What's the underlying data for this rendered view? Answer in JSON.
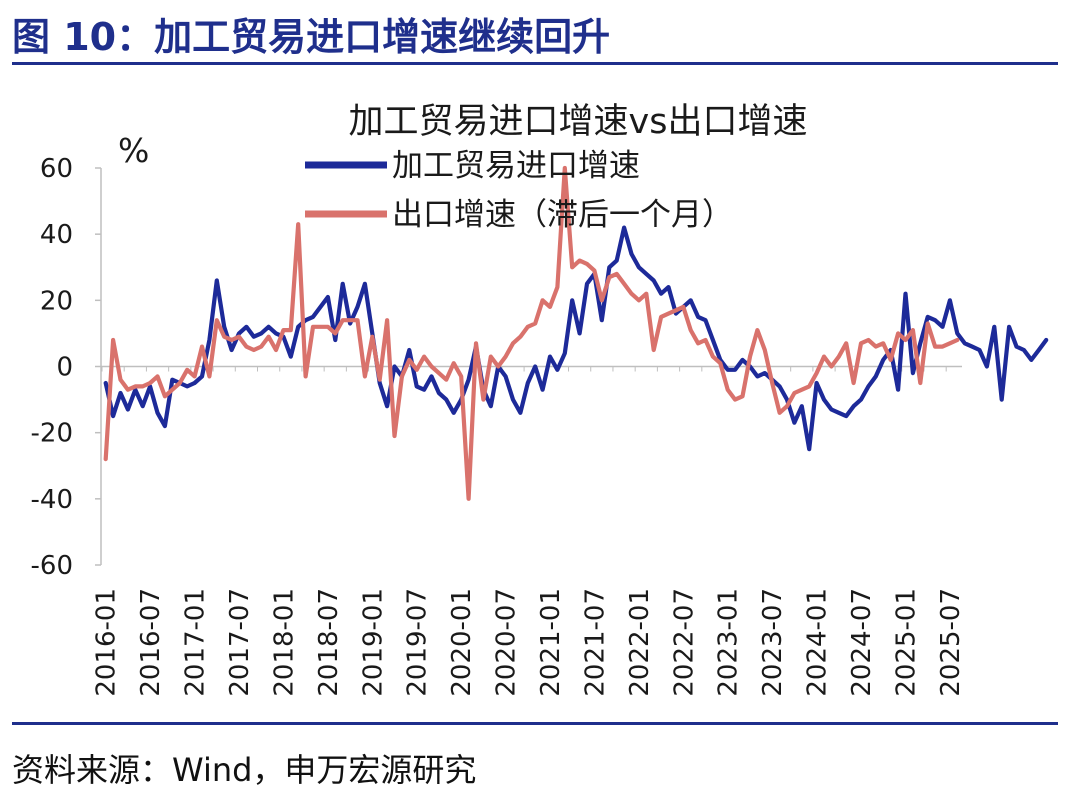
{
  "figure": {
    "title": "图 10：加工贸易进口增速继续回升",
    "source": "资料来源：Wind，申万宏源研究"
  },
  "colors": {
    "brand": "#1f2f8c",
    "series_import": "#1d2a99",
    "series_export": "#d9726c"
  },
  "chart_data": {
    "type": "line",
    "title": "加工贸易进口增速vs出口增速",
    "ylabel": "%",
    "xlabel": "",
    "ylim": [
      -60,
      60
    ],
    "yticks": [
      "60",
      "40",
      "20",
      "0",
      "-20",
      "-40",
      "-60"
    ],
    "xticks": [
      "2016-01",
      "2016-07",
      "2017-01",
      "2017-07",
      "2018-01",
      "2018-07",
      "2019-01",
      "2019-07",
      "2020-01",
      "2020-07",
      "2021-01",
      "2021-07",
      "2022-01",
      "2022-07",
      "2023-01",
      "2023-07",
      "2024-01",
      "2024-07",
      "2025-01",
      "2025-07"
    ],
    "legend_position": "top",
    "grid": false,
    "x_start": "2016-01",
    "x_end": "2025-08",
    "series": [
      {
        "name": "加工贸易进口增速",
        "color": "#1d2a99",
        "values": [
          -5,
          -15,
          -8,
          -13,
          -7,
          -12,
          -6,
          -14,
          -18,
          -4,
          -5,
          -6,
          -5,
          -3,
          8,
          26,
          12,
          5,
          10,
          12,
          9,
          10,
          12,
          10,
          9,
          3,
          12,
          14,
          15,
          18,
          21,
          8,
          25,
          13,
          18,
          25,
          10,
          -5,
          -12,
          0,
          -3,
          5,
          -6,
          -7,
          -3,
          -8,
          -10,
          -14,
          -10,
          -4,
          6,
          -7,
          -12,
          0,
          -3,
          -10,
          -14,
          -5,
          0,
          -7,
          3,
          -1,
          4,
          20,
          10,
          25,
          28,
          14,
          30,
          32,
          42,
          34,
          30,
          28,
          26,
          22,
          24,
          16,
          18,
          20,
          15,
          14,
          8,
          2,
          -1,
          -1,
          2,
          0,
          -3,
          -2,
          -4,
          -6,
          -10,
          -17,
          -12,
          -25,
          -5,
          -10,
          -13,
          -14,
          -15,
          -12,
          -10,
          -6,
          -3,
          2,
          5,
          -7,
          22,
          -2,
          7,
          15,
          14,
          12,
          20,
          10,
          7,
          6,
          5,
          0,
          12,
          -10,
          12,
          6,
          5,
          2,
          5,
          8
        ]
      },
      {
        "name": "出口增速（滞后一个月）",
        "color": "#d9726c",
        "values": [
          -28,
          8,
          -4,
          -7,
          -6,
          -6,
          -5,
          -3,
          -9,
          -7,
          -5,
          -1,
          -3,
          6,
          -3,
          14,
          9,
          8,
          9,
          6,
          5,
          6,
          9,
          5,
          11,
          11,
          43,
          -3,
          12,
          12,
          12,
          10,
          14,
          14,
          14,
          -3,
          9,
          -4,
          14,
          -21,
          -3,
          2,
          -1,
          3,
          0,
          -2,
          -4,
          1,
          -3,
          -40,
          7,
          -10,
          3,
          0,
          3,
          7,
          9,
          12,
          13,
          20,
          18,
          24,
          60,
          30,
          32,
          31,
          29,
          20,
          27,
          28,
          25,
          22,
          20,
          22,
          5,
          15,
          16,
          17,
          18,
          11,
          7,
          8,
          3,
          1,
          -7,
          -10,
          -9,
          3,
          11,
          5,
          -5,
          -14,
          -12,
          -8,
          -7,
          -6,
          -2,
          3,
          0,
          3,
          7,
          -5,
          7,
          8,
          6,
          7,
          2,
          10,
          8,
          11,
          -5,
          13,
          6,
          6,
          7,
          8
        ]
      }
    ]
  }
}
